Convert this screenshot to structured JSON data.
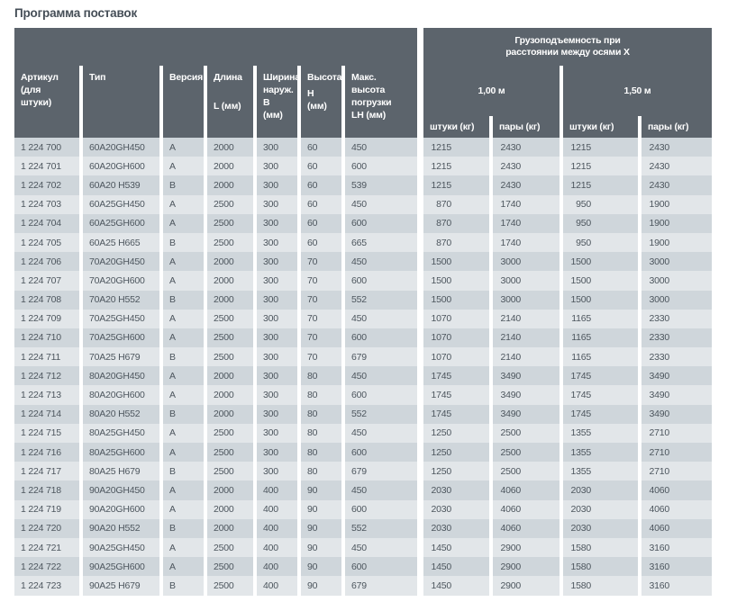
{
  "title": "Программа поставок",
  "colors": {
    "header_bg": "#5c646c",
    "header_text": "#ffffff",
    "row_dark": "#cfd6db",
    "row_light": "#e2e6e9",
    "data_text": "#4d565e",
    "title_text": "#454e57"
  },
  "table": {
    "group_header": {
      "line1": "Грузоподъемность при",
      "line2": "расстоянии между осями  X"
    },
    "columns": [
      {
        "id": "articul",
        "title": "Артикул (для штуки)",
        "unit": ""
      },
      {
        "id": "type",
        "title": "Тип",
        "unit": ""
      },
      {
        "id": "version",
        "title": "Версия",
        "unit": ""
      },
      {
        "id": "length",
        "title": "Длина",
        "unit": "L (мм)"
      },
      {
        "id": "outer-width",
        "title": "Ширина наруж.",
        "unit": "B (мм)"
      },
      {
        "id": "height",
        "title": "Высота",
        "unit": "H (мм)"
      },
      {
        "id": "max-load-height",
        "title": "Макс. высота погрузки",
        "unit": "LH (мм)"
      }
    ],
    "groups": [
      {
        "label": "1,00 м",
        "sub": [
          "штуки (кг)",
          "пары (кг)"
        ]
      },
      {
        "label": "1,50 м",
        "sub": [
          "штуки (кг)",
          "пары (кг)"
        ]
      }
    ],
    "rows": [
      [
        "1 224 700",
        "60A20GH450",
        "A",
        "2000",
        "300",
        "60",
        "450",
        "1215",
        "2430",
        "1215",
        "2430"
      ],
      [
        "1 224 701",
        "60A20GH600",
        "A",
        "2000",
        "300",
        "60",
        "600",
        "1215",
        "2430",
        "1215",
        "2430"
      ],
      [
        "1 224 702",
        "60A20 H539",
        "B",
        "2000",
        "300",
        "60",
        "539",
        "1215",
        "2430",
        "1215",
        "2430"
      ],
      [
        "1 224 703",
        "60A25GH450",
        "A",
        "2500",
        "300",
        "60",
        "450",
        "870",
        "1740",
        "950",
        "1900"
      ],
      [
        "1 224 704",
        "60A25GH600",
        "A",
        "2500",
        "300",
        "60",
        "600",
        "870",
        "1740",
        "950",
        "1900"
      ],
      [
        "1 224 705",
        "60A25 H665",
        "B",
        "2500",
        "300",
        "60",
        "665",
        "870",
        "1740",
        "950",
        "1900"
      ],
      [
        "1 224 706",
        "70A20GH450",
        "A",
        "2000",
        "300",
        "70",
        "450",
        "1500",
        "3000",
        "1500",
        "3000"
      ],
      [
        "1 224 707",
        "70A20GH600",
        "A",
        "2000",
        "300",
        "70",
        "600",
        "1500",
        "3000",
        "1500",
        "3000"
      ],
      [
        "1 224 708",
        "70A20 H552",
        "B",
        "2000",
        "300",
        "70",
        "552",
        "1500",
        "3000",
        "1500",
        "3000"
      ],
      [
        "1 224 709",
        "70A25GH450",
        "A",
        "2500",
        "300",
        "70",
        "450",
        "1070",
        "2140",
        "1165",
        "2330"
      ],
      [
        "1 224 710",
        "70A25GH600",
        "A",
        "2500",
        "300",
        "70",
        "600",
        "1070",
        "2140",
        "1165",
        "2330"
      ],
      [
        "1 224 711",
        "70A25 H679",
        "B",
        "2500",
        "300",
        "70",
        "679",
        "1070",
        "2140",
        "1165",
        "2330"
      ],
      [
        "1 224 712",
        "80A20GH450",
        "A",
        "2000",
        "300",
        "80",
        "450",
        "1745",
        "3490",
        "1745",
        "3490"
      ],
      [
        "1 224 713",
        "80A20GH600",
        "A",
        "2000",
        "300",
        "80",
        "600",
        "1745",
        "3490",
        "1745",
        "3490"
      ],
      [
        "1 224 714",
        "80A20 H552",
        "B",
        "2000",
        "300",
        "80",
        "552",
        "1745",
        "3490",
        "1745",
        "3490"
      ],
      [
        "1 224 715",
        "80A25GH450",
        "A",
        "2500",
        "300",
        "80",
        "450",
        "1250",
        "2500",
        "1355",
        "2710"
      ],
      [
        "1 224 716",
        "80A25GH600",
        "A",
        "2500",
        "300",
        "80",
        "600",
        "1250",
        "2500",
        "1355",
        "2710"
      ],
      [
        "1 224 717",
        "80A25 H679",
        "B",
        "2500",
        "300",
        "80",
        "679",
        "1250",
        "2500",
        "1355",
        "2710"
      ],
      [
        "1 224 718",
        "90A20GH450",
        "A",
        "2000",
        "400",
        "90",
        "450",
        "2030",
        "4060",
        "2030",
        "4060"
      ],
      [
        "1 224 719",
        "90A20GH600",
        "A",
        "2000",
        "400",
        "90",
        "600",
        "2030",
        "4060",
        "2030",
        "4060"
      ],
      [
        "1 224 720",
        "90A20 H552",
        "B",
        "2000",
        "400",
        "90",
        "552",
        "2030",
        "4060",
        "2030",
        "4060"
      ],
      [
        "1 224 721",
        "90A25GH450",
        "A",
        "2500",
        "400",
        "90",
        "450",
        "1450",
        "2900",
        "1580",
        "3160"
      ],
      [
        "1 224 722",
        "90A25GH600",
        "A",
        "2500",
        "400",
        "90",
        "600",
        "1450",
        "2900",
        "1580",
        "3160"
      ],
      [
        "1 224 723",
        "90A25 H679",
        "B",
        "2500",
        "400",
        "90",
        "679",
        "1450",
        "2900",
        "1580",
        "3160"
      ]
    ]
  }
}
